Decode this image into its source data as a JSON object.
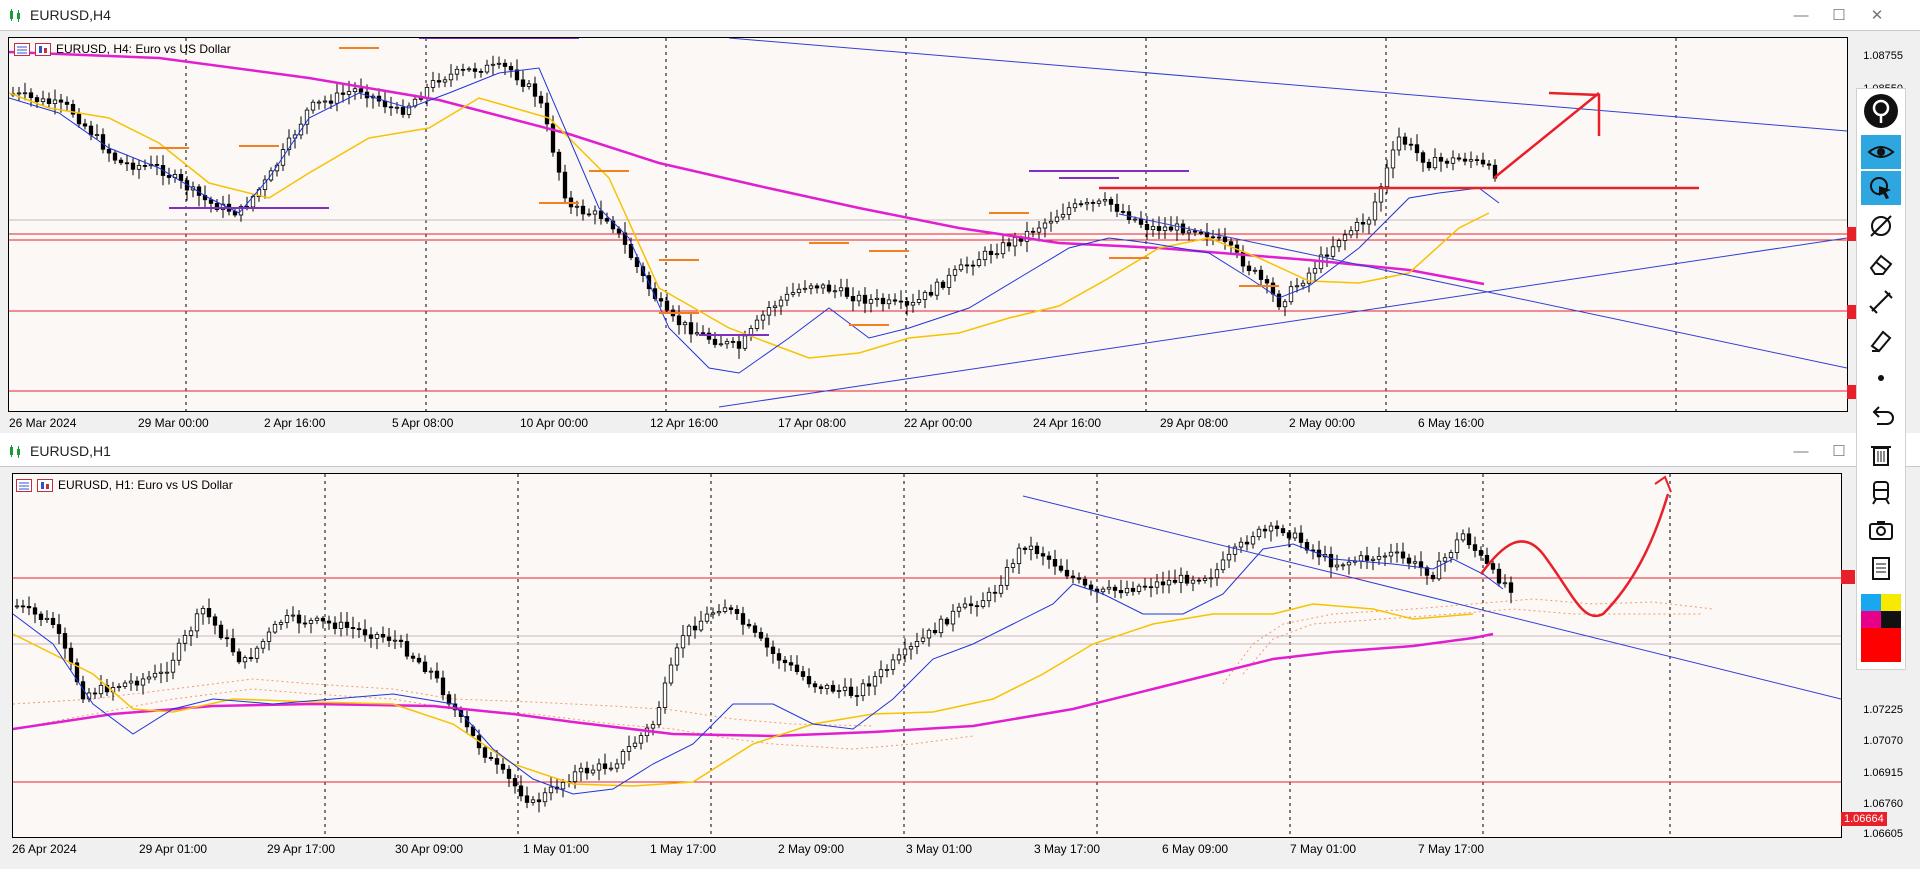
{
  "top_window": {
    "title": "EURUSD,H4",
    "legend": "EURUSD, H4:  Euro vs US Dollar",
    "price_ticks": [
      "1.08755",
      "1.08550"
    ],
    "time_labels": [
      "26 Mar 2024",
      "29 Mar 00:00",
      "2 Apr 16:00",
      "5 Apr 08:00",
      "10 Apr 00:00",
      "12 Apr 16:00",
      "17 Apr 08:00",
      "22 Apr 00:00",
      "24 Apr 16:00",
      "29 Apr 08:00",
      "2 May 00:00",
      "6 May 16:00"
    ]
  },
  "bottom_window": {
    "title": "EURUSD,H1",
    "legend": "EURUSD, H1:  Euro vs US Dollar",
    "price_ticks": [
      "1.07225",
      "1.07070",
      "1.06915",
      "1.06760",
      "1.06605"
    ],
    "current_price": "1.06664",
    "time_labels": [
      "26 Apr 2024",
      "29 Apr 01:00",
      "29 Apr 17:00",
      "30 Apr 09:00",
      "1 May 01:00",
      "1 May 17:00",
      "2 May 09:00",
      "3 May 01:00",
      "3 May 17:00",
      "6 May 09:00",
      "7 May 01:00",
      "7 May 17:00"
    ]
  },
  "window_controls": {
    "minimize": "—",
    "maximize": "☐",
    "close": "✕"
  },
  "toolbar": {
    "tools": [
      "pin-icon",
      "eye-icon",
      "cursor-select-icon",
      "trendline-icon",
      "eraser-icon",
      "ruler-icon",
      "highlighter-icon",
      "dot-icon",
      "undo-icon",
      "trash-icon",
      "train-icon",
      "camera-icon",
      "notes-icon",
      "color-palette-icon"
    ],
    "palette_colors": [
      "#19a7ef",
      "#f7ea00",
      "#e8008a",
      "#111111",
      "#ff0000"
    ]
  },
  "colors": {
    "plot_bg": "#fcf8f6",
    "ma_fast": "#1f35d6",
    "ma_slow": "#f7c200",
    "ma_long": "#e020d0",
    "trendline": "#3040d0",
    "level": "#e8202a",
    "annotation": "#e8202a"
  }
}
